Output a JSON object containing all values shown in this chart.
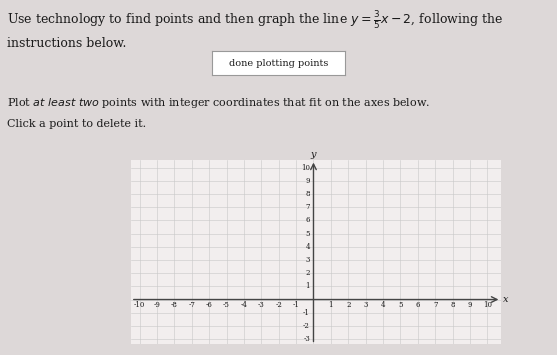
{
  "button_text": "done plotting points",
  "xmin": -10,
  "xmax": 10,
  "ymin": -3,
  "ymax": 10,
  "grid_color": "#c8c8c8",
  "axis_color": "#444444",
  "bg_color": "#f2eeee",
  "text_color": "#1a1a1a",
  "button_color": "#ffffff",
  "button_border": "#999999",
  "xlabel": "x",
  "ylabel": "y",
  "fig_bg": "#ddd8d8",
  "title_line1": "Use technology to find points and then graph the line $y = \\frac{3}{5}x - 2$, following the",
  "title_line2": "instructions below.",
  "instr_line1_plain": "Plot ",
  "instr_line1_italic": "at least two",
  "instr_line1_rest": " points with integer coordinates that fit on the axes below.",
  "instr_line2": "Click a point to delete it.",
  "fontsize_title": 9,
  "fontsize_instr": 8,
  "fontsize_tick": 5,
  "fontsize_axlabel": 7
}
